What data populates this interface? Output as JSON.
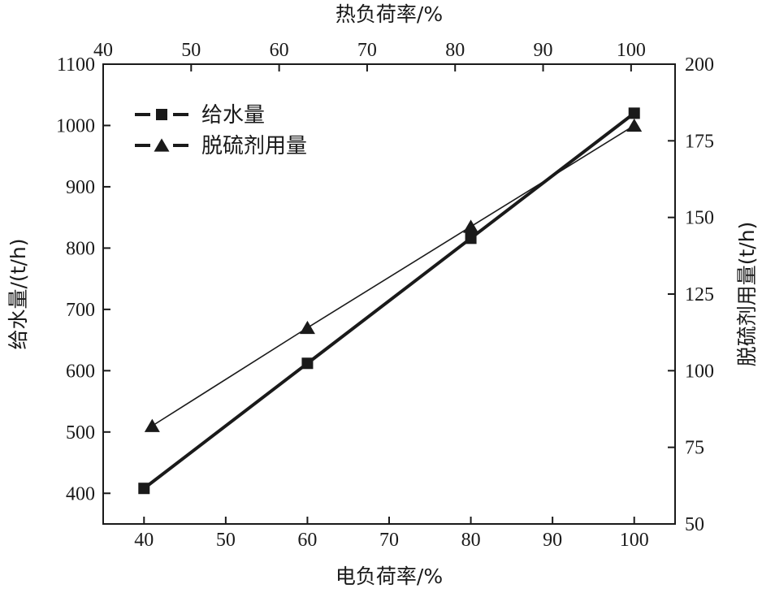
{
  "chart_data": {
    "type": "line",
    "title": "",
    "x": [
      40,
      60,
      80,
      100
    ],
    "xlabel": "电负荷率/%",
    "xlim": [
      35,
      105
    ],
    "xticks": [
      "40",
      "50",
      "60",
      "70",
      "80",
      "90",
      "100"
    ],
    "top_xlabel": "热负荷率/%",
    "top_xlim": [
      40,
      105
    ],
    "top_xticks": [
      "40",
      "50",
      "60",
      "70",
      "80",
      "90",
      "100"
    ],
    "ylabel": "给水量/(t/h)",
    "ylim": [
      350,
      1100
    ],
    "yticks": [
      "400",
      "500",
      "600",
      "700",
      "800",
      "900",
      "1000",
      "1100"
    ],
    "y2label": "脱硫剂用量(t/h)",
    "y2lim": [
      50,
      200
    ],
    "y2ticks": [
      "50",
      "75",
      "100",
      "125",
      "150",
      "175",
      "200"
    ],
    "legend_position": "top-left",
    "grid": false,
    "series": [
      {
        "name": "给水量",
        "axis": "left",
        "marker": "square",
        "x": [
          40,
          60,
          80,
          100
        ],
        "values": [
          408,
          612,
          816,
          1020
        ],
        "color": "#1a1a1a"
      },
      {
        "name": "脱硫剂用量",
        "axis": "right",
        "marker": "triangle",
        "x": [
          41,
          60,
          80,
          100
        ],
        "values": [
          82,
          114,
          147,
          180
        ],
        "color": "#1a1a1a"
      }
    ]
  }
}
